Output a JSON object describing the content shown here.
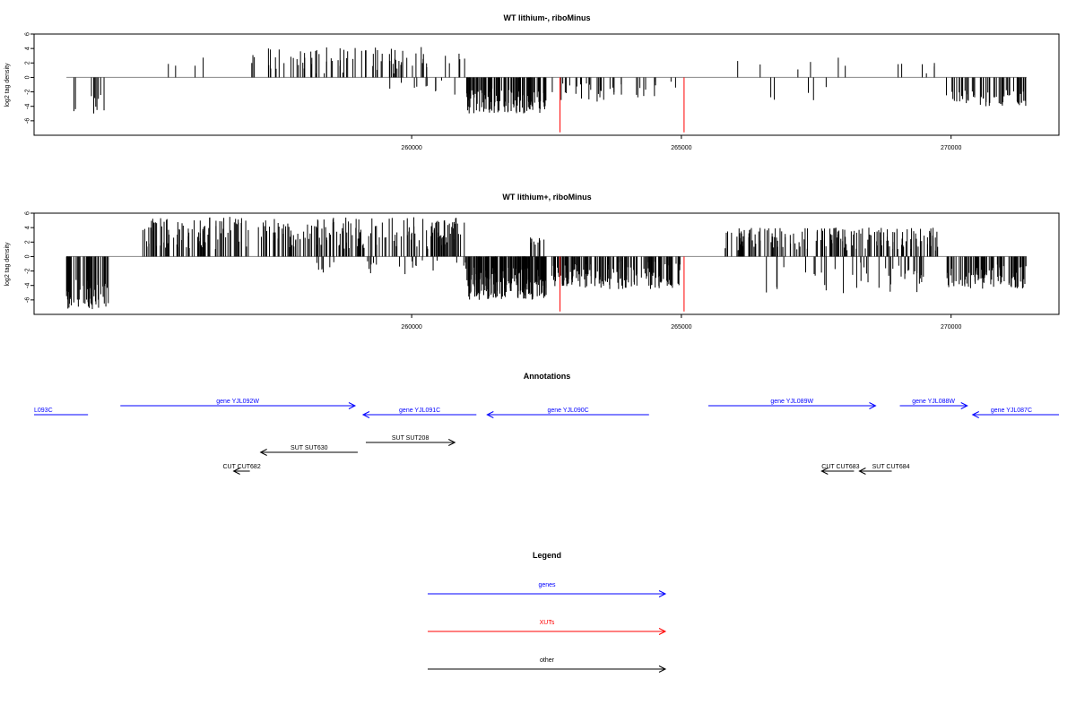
{
  "chart_data": [
    {
      "type": "bar",
      "title": "WT lithium-, riboMinus",
      "xlabel": "",
      "ylabel": "log2 tag density",
      "xlim": [
        253000,
        272000
      ],
      "ylim": [
        -8,
        6
      ],
      "yticks": [
        -6,
        -4,
        -2,
        0,
        2,
        4,
        6
      ],
      "xticks": [
        260000,
        265000,
        270000
      ],
      "xtick_labels": [
        "260000",
        "265000",
        "270000"
      ],
      "grid": false,
      "bar_color": "#000000",
      "highlight_color": "#ff0000",
      "signal_regions": [
        {
          "strand": "minus",
          "start": 253600,
          "end": 254400,
          "min": 1.5,
          "max": 5.0,
          "density": 10
        },
        {
          "strand": "plus",
          "start": 255400,
          "end": 256200,
          "min": 0.5,
          "max": 3.0,
          "density": 4
        },
        {
          "strand": "plus",
          "start": 257000,
          "end": 261000,
          "min": 0.5,
          "max": 4.2,
          "density": 80
        },
        {
          "strand": "minus",
          "start": 259400,
          "end": 260900,
          "min": 0.3,
          "max": 2.5,
          "density": 10
        },
        {
          "strand": "minus",
          "start": 261000,
          "end": 262500,
          "min": 1.5,
          "max": 5.0,
          "density": 120
        },
        {
          "strand": "minus",
          "start": 262600,
          "end": 263800,
          "min": 0.8,
          "max": 3.5,
          "density": 25
        },
        {
          "strand": "minus",
          "start": 263800,
          "end": 265000,
          "min": 0.5,
          "max": 2.8,
          "density": 12
        },
        {
          "strand": "plus",
          "start": 265500,
          "end": 268500,
          "min": 1.0,
          "max": 3.0,
          "density": 6
        },
        {
          "strand": "minus",
          "start": 266500,
          "end": 268000,
          "min": 0.8,
          "max": 3.5,
          "density": 5
        },
        {
          "strand": "plus",
          "start": 268800,
          "end": 269800,
          "min": 0.5,
          "max": 2.0,
          "density": 6
        },
        {
          "strand": "minus",
          "start": 269900,
          "end": 271400,
          "min": 1.5,
          "max": 4.0,
          "density": 60
        }
      ],
      "highlight_bars": [
        {
          "x": 262750,
          "y": -7.6
        },
        {
          "x": 265050,
          "y": -7.6
        }
      ]
    },
    {
      "type": "bar",
      "title": "WT lithium+, riboMinus",
      "xlabel": "",
      "ylabel": "log2 tag density",
      "xlim": [
        253000,
        272000
      ],
      "ylim": [
        -8,
        6
      ],
      "yticks": [
        -6,
        -4,
        -2,
        0,
        2,
        4,
        6
      ],
      "xticks": [
        260000,
        265000,
        270000
      ],
      "xtick_labels": [
        "260000",
        "265000",
        "270000"
      ],
      "grid": false,
      "bar_color": "#000000",
      "highlight_color": "#ff0000",
      "signal_regions": [
        {
          "strand": "minus",
          "start": 253600,
          "end": 254400,
          "min": 3.0,
          "max": 7.5,
          "density": 60
        },
        {
          "strand": "plus",
          "start": 255000,
          "end": 261000,
          "min": 1.0,
          "max": 5.5,
          "density": 260
        },
        {
          "strand": "minus",
          "start": 258000,
          "end": 261000,
          "min": 0.3,
          "max": 2.5,
          "density": 25
        },
        {
          "strand": "minus",
          "start": 261000,
          "end": 262500,
          "min": 1.5,
          "max": 6.0,
          "density": 200
        },
        {
          "strand": "plus",
          "start": 262200,
          "end": 262500,
          "min": 1.0,
          "max": 3.5,
          "density": 10
        },
        {
          "strand": "minus",
          "start": 262600,
          "end": 265000,
          "min": 0.5,
          "max": 4.5,
          "density": 160
        },
        {
          "strand": "plus",
          "start": 265800,
          "end": 269800,
          "min": 0.8,
          "max": 4.0,
          "density": 160
        },
        {
          "strand": "minus",
          "start": 266500,
          "end": 269500,
          "min": 0.8,
          "max": 5.5,
          "density": 40
        },
        {
          "strand": "minus",
          "start": 269900,
          "end": 271400,
          "min": 1.0,
          "max": 4.5,
          "density": 90
        }
      ],
      "highlight_bars": [
        {
          "x": 262750,
          "y": -7.6
        },
        {
          "x": 265050,
          "y": -7.6
        }
      ]
    }
  ],
  "annotations": {
    "title": "Annotations",
    "xlim": [
      253000,
      272000
    ],
    "features": [
      {
        "label": "L093C",
        "start": 253000,
        "end": 254000,
        "direction": "none",
        "row": 1,
        "color": "#0000ff",
        "label_anchor": "left"
      },
      {
        "label": "gene YJL092W",
        "start": 254600,
        "end": 258950,
        "direction": "right",
        "row": 0,
        "color": "#0000ff",
        "label_anchor": "center"
      },
      {
        "label": "gene YJL091C",
        "start": 259100,
        "end": 261200,
        "direction": "left",
        "row": 1,
        "color": "#0000ff",
        "label_anchor": "center"
      },
      {
        "label": "gene YJL090C",
        "start": 261400,
        "end": 264400,
        "direction": "left",
        "row": 1,
        "color": "#0000ff",
        "label_anchor": "center"
      },
      {
        "label": "gene YJL089W",
        "start": 265500,
        "end": 268600,
        "direction": "right",
        "row": 0,
        "color": "#0000ff",
        "label_anchor": "center"
      },
      {
        "label": "gene YJL088W",
        "start": 269050,
        "end": 270300,
        "direction": "right",
        "row": 0,
        "color": "#0000ff",
        "label_anchor": "center"
      },
      {
        "label": "gene YJL087C",
        "start": 270400,
        "end": 272000,
        "direction": "left",
        "row": 1,
        "color": "#0000ff",
        "label_anchor": "right"
      },
      {
        "label": "SUT SUT208",
        "start": 259150,
        "end": 260800,
        "direction": "right",
        "row": 2,
        "color": "#000000",
        "label_anchor": "center"
      },
      {
        "label": "SUT SUT630",
        "start": 257200,
        "end": 259000,
        "direction": "left",
        "row": 3,
        "color": "#000000",
        "label_anchor": "center"
      },
      {
        "label": "CUT CUT682",
        "start": 256700,
        "end": 257000,
        "direction": "left",
        "row": 4,
        "color": "#000000",
        "label_anchor": "center"
      },
      {
        "label": "CUT CUT683",
        "start": 267600,
        "end": 268200,
        "direction": "left",
        "row": 4,
        "color": "#000000",
        "label_anchor": "left"
      },
      {
        "label": "SUT CUT684",
        "start": 268300,
        "end": 268900,
        "direction": "left",
        "row": 4,
        "color": "#000000",
        "label_anchor": "right"
      }
    ]
  },
  "legend": {
    "title": "Legend",
    "entries": [
      {
        "label": "genes",
        "color": "#0000ff"
      },
      {
        "label": "XUTs",
        "color": "#ff0000"
      },
      {
        "label": "other",
        "color": "#000000"
      }
    ]
  }
}
